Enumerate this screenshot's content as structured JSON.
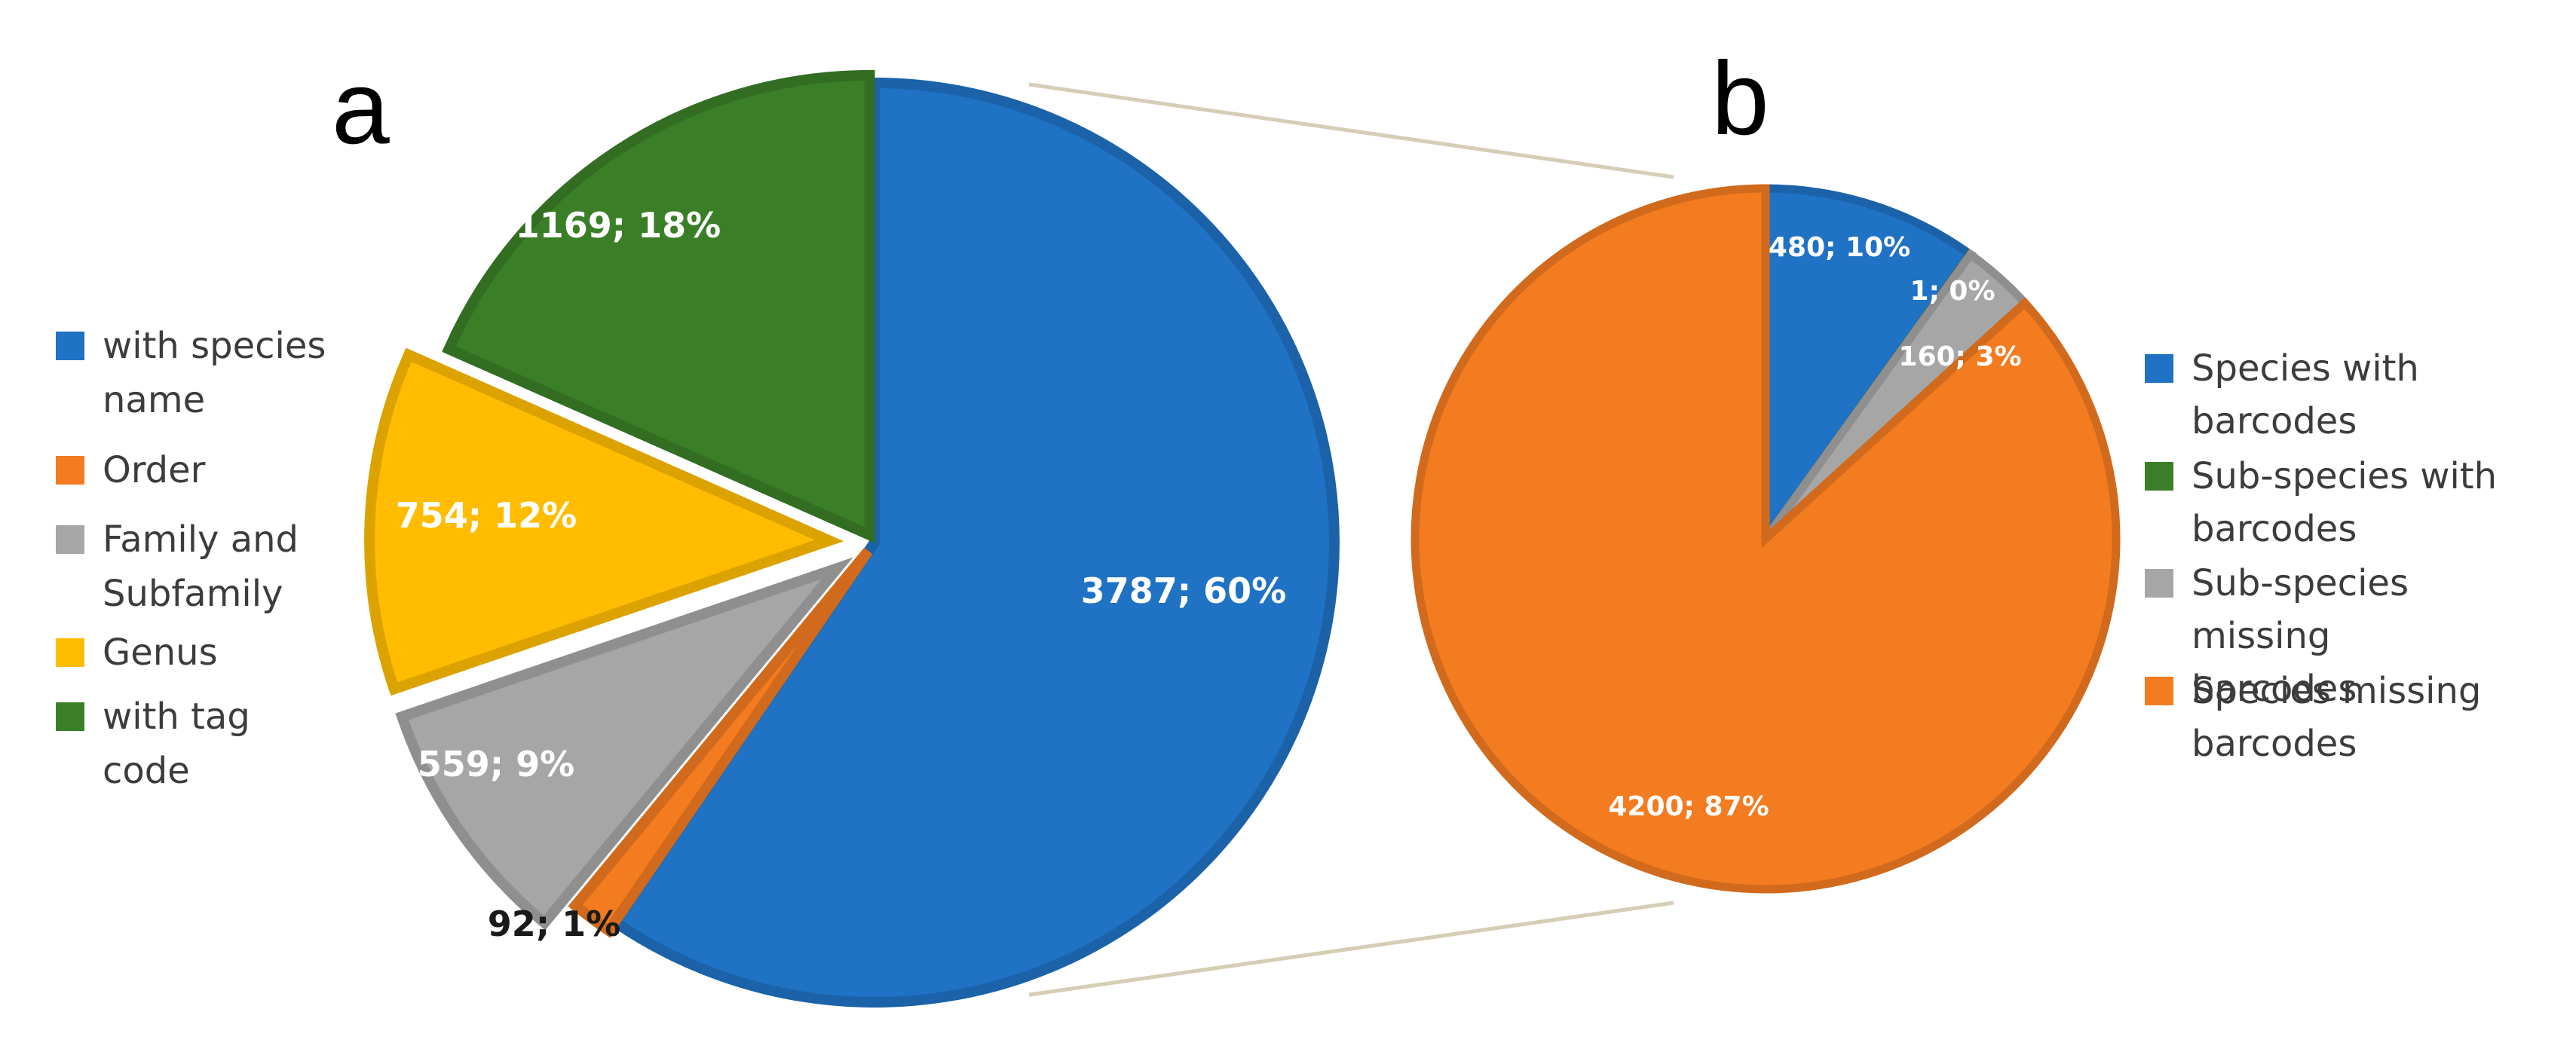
{
  "colors": {
    "blue": "#1f72c4",
    "orange": "#f37b20",
    "gray": "#a6a6a6",
    "yellow": "#ffbc00",
    "green": "#3a7f28",
    "connector": "#d7ccb6"
  },
  "chart_data": [
    {
      "panel": "a",
      "type": "pie",
      "exploded": true,
      "legend_position": "left",
      "categories": [
        "with species name",
        "Order",
        "Family and Subfamily",
        "Genus",
        "with tag code"
      ],
      "values": [
        3787,
        92,
        559,
        754,
        1169
      ],
      "percents": [
        60,
        1,
        9,
        12,
        18
      ],
      "labels": [
        "3787; 60%",
        "92; 1%",
        "559; 9%",
        "754; 12%",
        "1169; 18%"
      ],
      "legend": [
        "with species\nname",
        "Order",
        "Family and\nSubfamily",
        "Genus",
        "with tag\ncode"
      ],
      "colors": [
        "#1f72c4",
        "#f37b20",
        "#a6a6a6",
        "#ffbc00",
        "#3a7f28"
      ]
    },
    {
      "panel": "b",
      "type": "pie",
      "exploded": false,
      "legend_position": "right",
      "categories": [
        "Species with barcodes",
        "Sub-species with barcodes",
        "Sub-species missing barcodes",
        "Species missing barcodes"
      ],
      "values": [
        480,
        1,
        160,
        4200
      ],
      "percents": [
        10,
        0,
        3,
        87
      ],
      "labels": [
        "480; 10%",
        "1; 0%",
        "160; 3%",
        "4200; 87%"
      ],
      "legend": [
        "Species with\nbarcodes",
        "Sub-species with\nbarcodes",
        "Sub-species missing\nbarcodes",
        "Species missing\nbarcodes"
      ],
      "colors": [
        "#1f72c4",
        "#3a7f28",
        "#a6a6a6",
        "#f37b20"
      ]
    }
  ]
}
